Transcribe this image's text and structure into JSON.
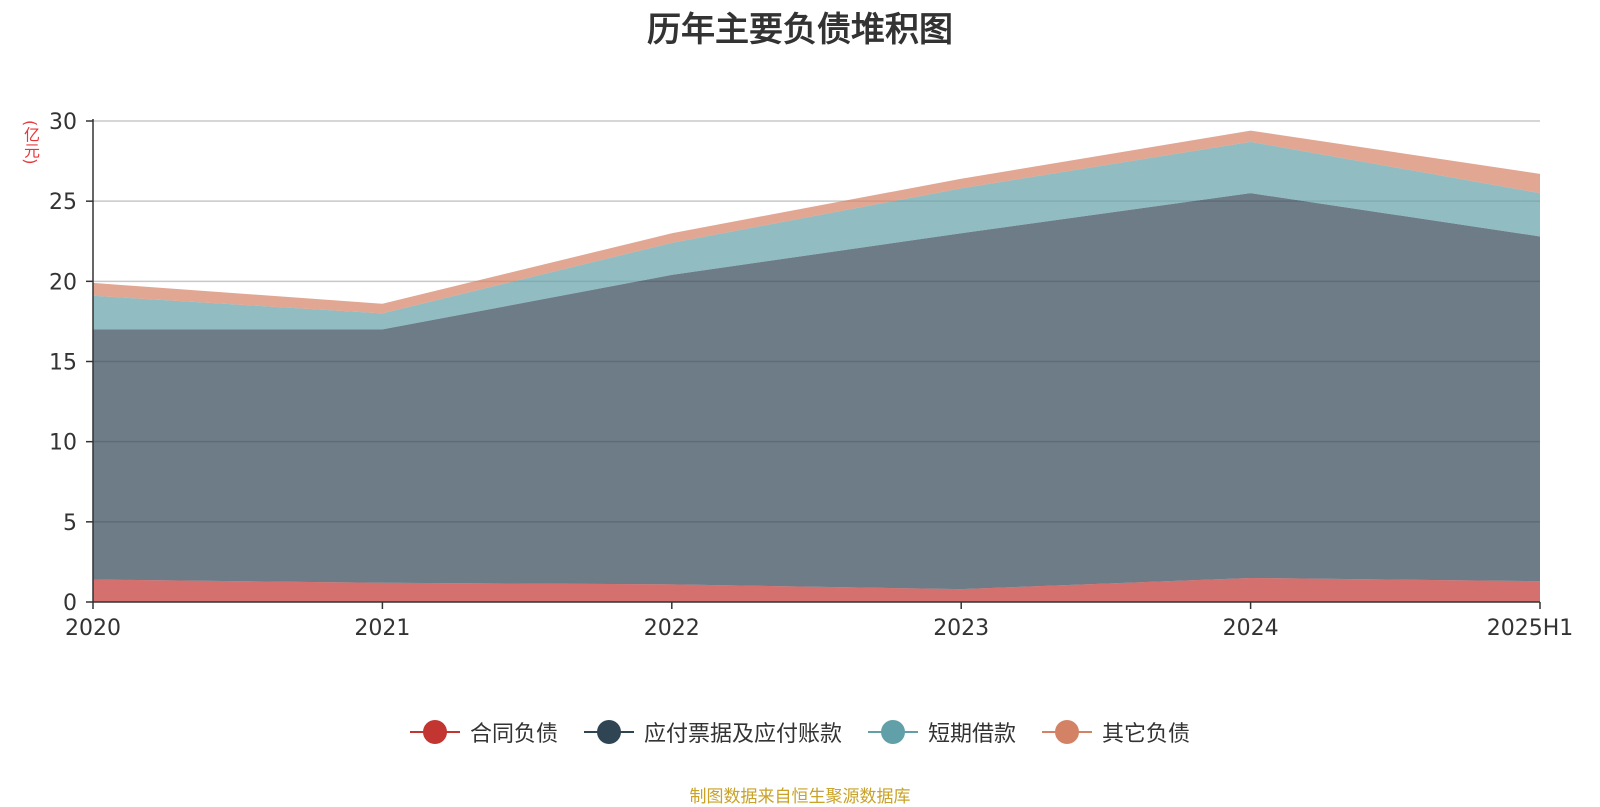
{
  "chart_data": {
    "type": "area",
    "stacked": true,
    "title": "历年主要负债堆积图",
    "unit_label": "(亿元)",
    "categories": [
      "2020",
      "2021",
      "2022",
      "2023",
      "2024",
      "2025H1"
    ],
    "ylim": [
      0,
      30
    ],
    "yticks": [
      0,
      5,
      10,
      15,
      20,
      25,
      30
    ],
    "grid": true,
    "legend_position": "bottom",
    "series": [
      {
        "name": "合同负债",
        "color": "#c23531",
        "values": [
          1.4,
          1.2,
          1.1,
          0.8,
          1.5,
          1.3
        ]
      },
      {
        "name": "应付票据及应付账款",
        "color": "#2f4554",
        "values": [
          15.6,
          15.8,
          19.3,
          22.2,
          24.0,
          21.5
        ]
      },
      {
        "name": "短期借款",
        "color": "#61a0a8",
        "values": [
          2.1,
          1.0,
          2.0,
          2.8,
          3.2,
          2.7
        ]
      },
      {
        "name": "其它负债",
        "color": "#d48265",
        "values": [
          0.8,
          0.6,
          0.6,
          0.6,
          0.7,
          1.2
        ]
      }
    ]
  },
  "source_text": "制图数据来自恒生聚源数据库"
}
